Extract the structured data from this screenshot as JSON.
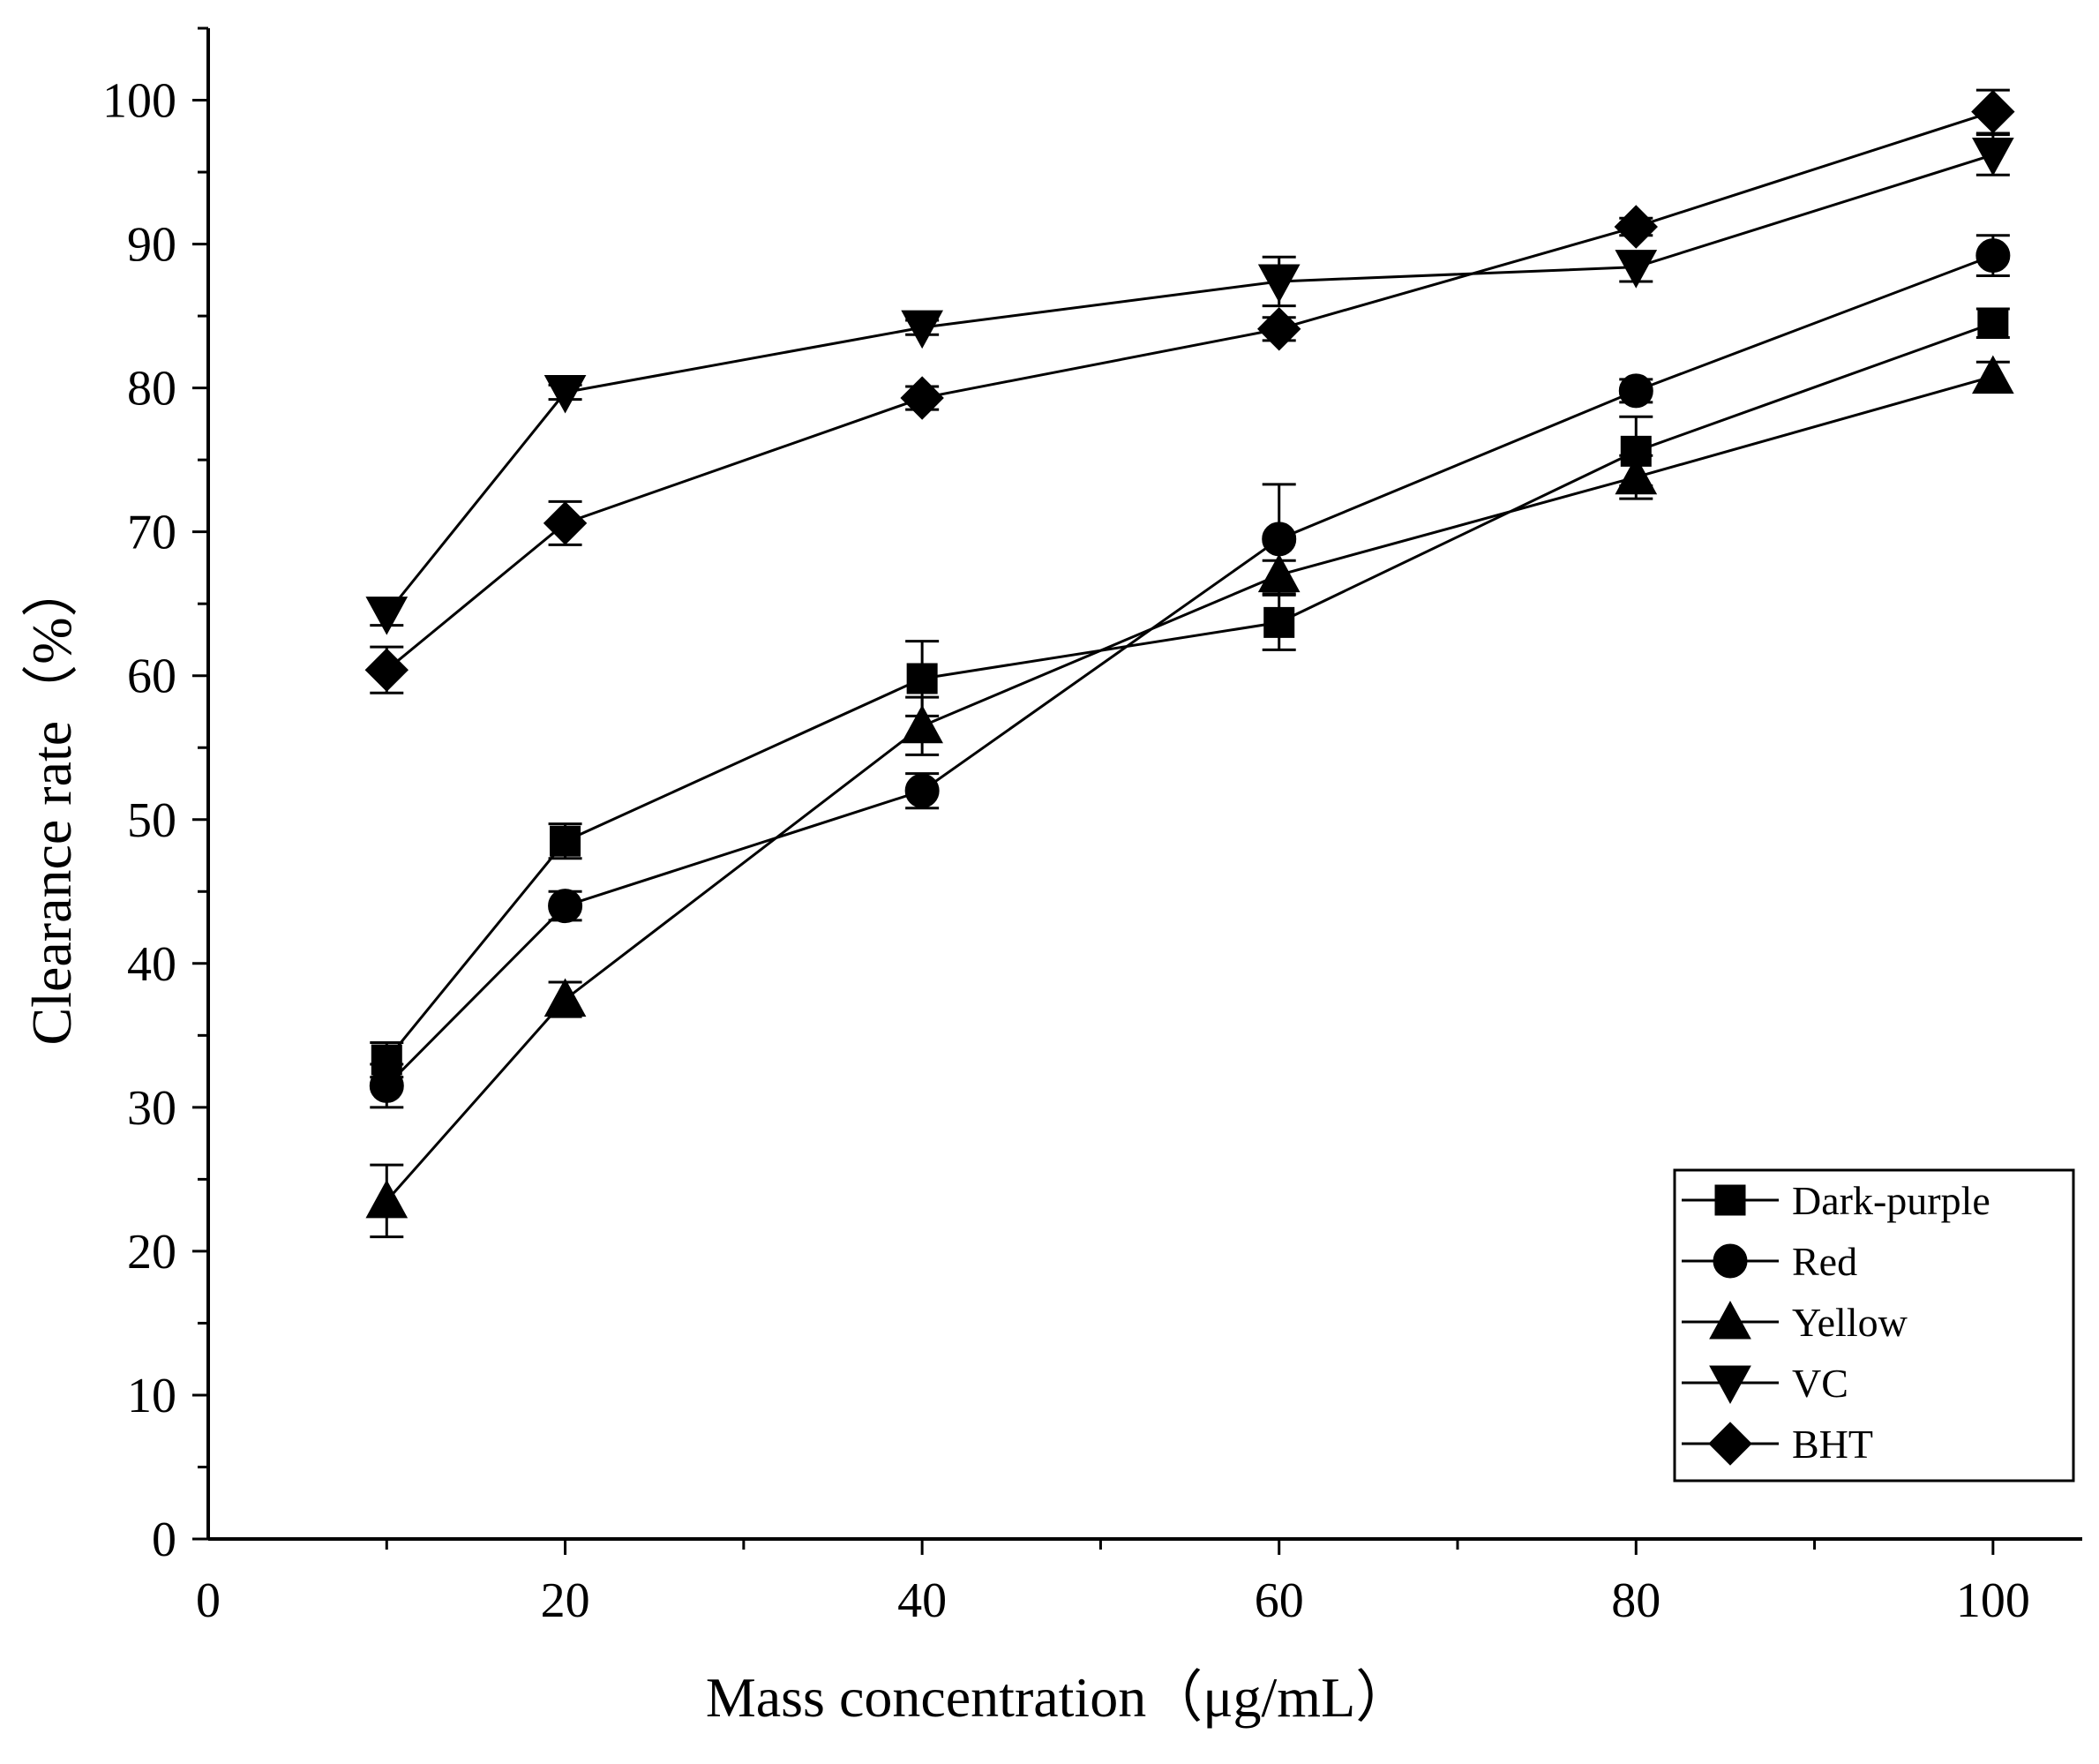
{
  "chart_data": {
    "type": "line",
    "title": "",
    "xlabel": "Mass concentration（μg/mL）",
    "ylabel": "Clearance rate（%）",
    "xlim": [
      0,
      105
    ],
    "ylim": [
      0,
      105
    ],
    "x_ticks": [
      0,
      20,
      40,
      60,
      80,
      100
    ],
    "x_minor_ticks": [
      10,
      30,
      50,
      70,
      90
    ],
    "y_ticks": [
      0,
      10,
      20,
      30,
      40,
      50,
      60,
      70,
      80,
      90,
      100
    ],
    "y_minor_ticks": [
      5,
      15,
      25,
      35,
      45,
      55,
      65,
      75,
      85,
      95,
      105
    ],
    "legend_position": "bottom-right",
    "x": [
      10,
      20,
      40,
      60,
      80,
      100
    ],
    "series": [
      {
        "name": "Dark-purple",
        "marker": "square",
        "values": [
          33.3,
          48.5,
          59.8,
          63.7,
          75.6,
          84.5
        ],
        "errors": [
          1.2,
          1.2,
          2.6,
          1.9,
          2.4,
          1.0
        ]
      },
      {
        "name": "Red",
        "marker": "circle",
        "values": [
          31.5,
          44.0,
          52.0,
          69.5,
          79.8,
          89.2
        ],
        "errors": [
          1.5,
          1.0,
          1.2,
          3.8,
          0.8,
          1.4
        ]
      },
      {
        "name": "Yellow",
        "marker": "triangle-up",
        "values": [
          23.5,
          37.5,
          56.5,
          67.0,
          73.8,
          80.8
        ],
        "errors": [
          2.5,
          1.2,
          2.0,
          1.0,
          1.5,
          1.0
        ]
      },
      {
        "name": "VC",
        "marker": "triangle-down",
        "values": [
          64.3,
          79.7,
          84.2,
          87.4,
          88.4,
          96.2
        ],
        "errors": [
          0.8,
          0.5,
          0.5,
          1.7,
          1.0,
          1.4
        ]
      },
      {
        "name": "BHT",
        "marker": "diamond",
        "values": [
          60.4,
          70.6,
          79.3,
          84.1,
          91.2,
          99.2
        ],
        "errors": [
          1.6,
          1.5,
          0.8,
          0.8,
          0.6,
          1.5
        ]
      }
    ]
  }
}
